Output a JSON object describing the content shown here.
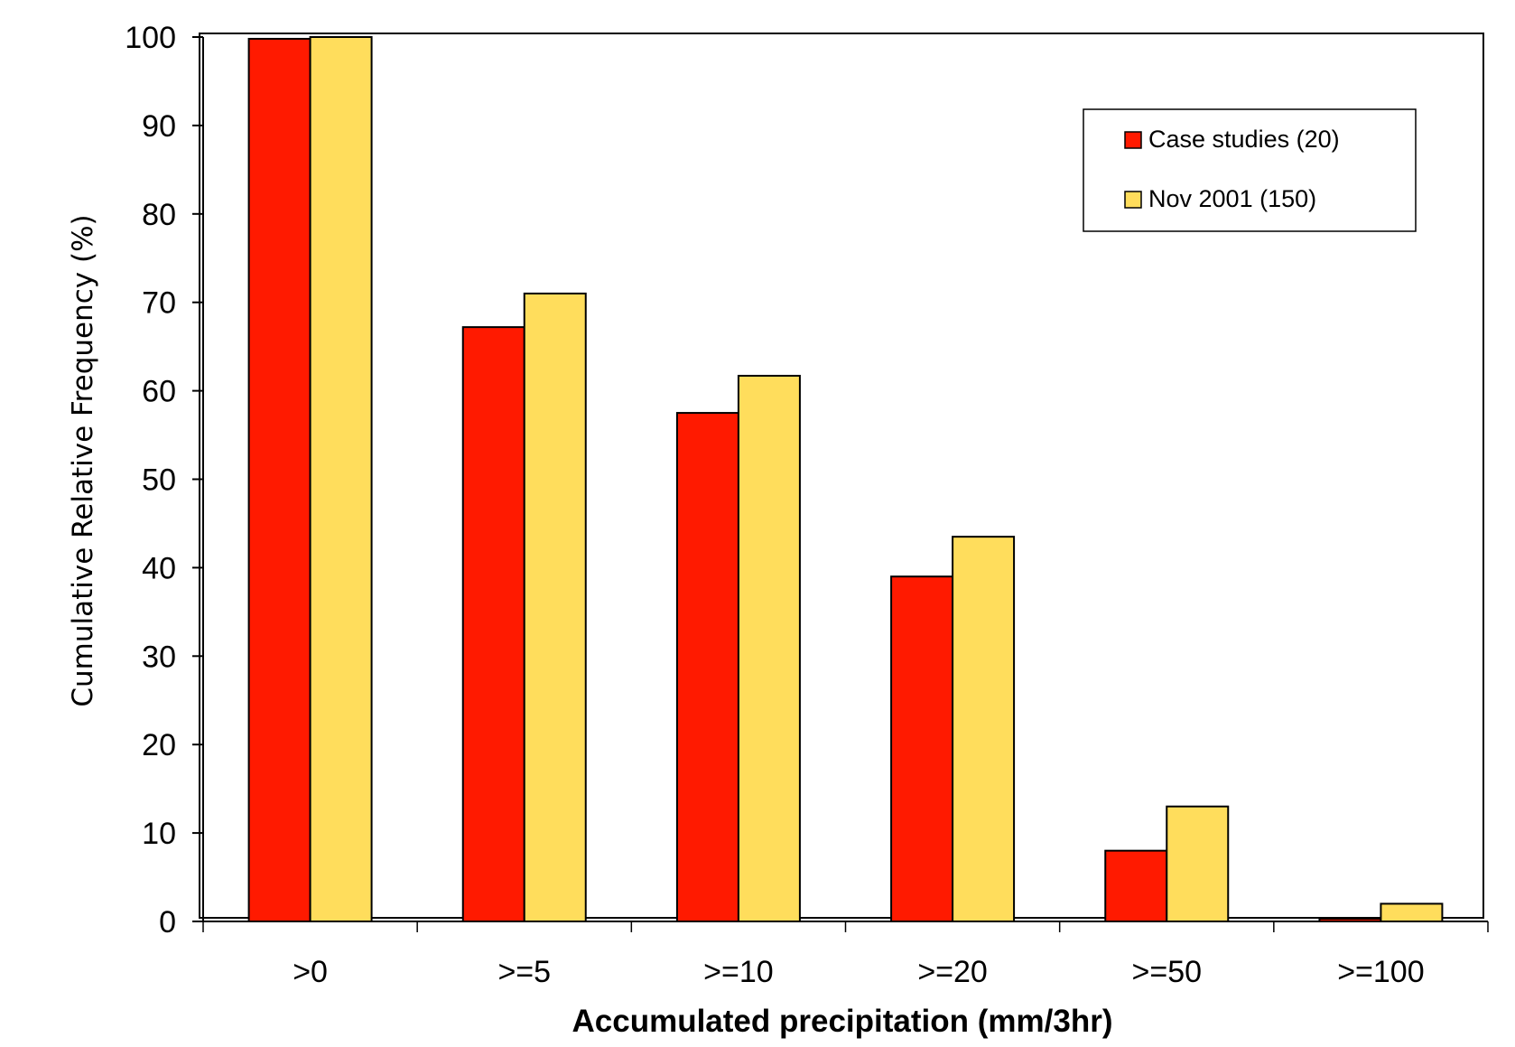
{
  "chart_data": {
    "type": "bar",
    "title": "",
    "xlabel": "Accumulated precipitation (mm/3hr)",
    "ylabel": "Cumulative Relative Frequency (%)",
    "categories": [
      ">0",
      ">=5",
      ">=10",
      ">=20",
      ">=50",
      ">=100"
    ],
    "series": [
      {
        "name": "Case studies (20)",
        "color": "#ff1a00",
        "values": [
          99.8,
          67.2,
          57.5,
          39.0,
          8.0,
          0.3
        ]
      },
      {
        "name": "Nov 2001 (150)",
        "color": "#ffdd5c",
        "values": [
          100.0,
          71.0,
          61.7,
          43.5,
          13.0,
          2.0
        ]
      }
    ],
    "ylim": [
      0,
      100
    ],
    "yticks": [
      0,
      10,
      20,
      30,
      40,
      50,
      60,
      70,
      80,
      90,
      100
    ],
    "grid": false,
    "legend_position": "top-right"
  }
}
